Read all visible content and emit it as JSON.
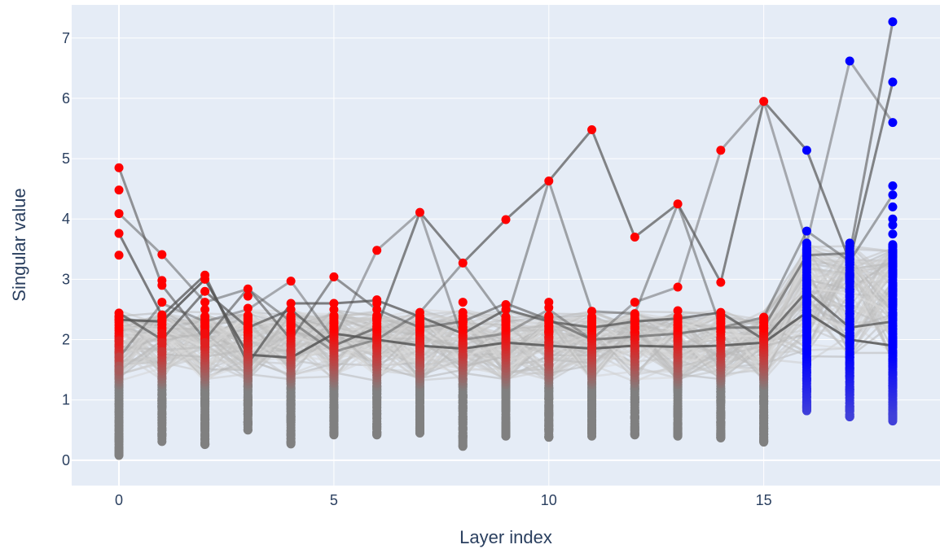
{
  "chart_data": {
    "type": "scatter",
    "title": "",
    "xlabel": "Layer index",
    "ylabel": "Singular value",
    "xlim": [
      -1.1,
      19.1
    ],
    "ylim": [
      -0.42,
      7.55
    ],
    "x_ticks": [
      0,
      5,
      10,
      15
    ],
    "y_ticks": [
      0,
      1,
      2,
      3,
      4,
      5,
      6,
      7
    ],
    "grid": true,
    "legend": "none",
    "colors": {
      "plot_bg": "#e5ecf6",
      "grid": "#ffffff",
      "text": "#2a3f5f",
      "point_low": "#808080",
      "point_high_early": "#ff0000",
      "point_high_late": "#0000ff",
      "line_dark": "#555555",
      "line_light": "#cccccc"
    },
    "point_layers": [
      {
        "x": 0,
        "min": 0.08,
        "max": 4.85,
        "n": 18,
        "color": "red",
        "values": [
          4.85,
          4.48,
          4.09,
          3.76,
          3.4,
          2.44,
          2.33,
          1.98,
          1.71,
          1.56,
          1.5,
          0.93,
          0.8,
          0.5,
          0.34,
          0.2,
          0.15,
          0.1
        ]
      },
      {
        "x": 1,
        "min": 0.31,
        "max": 3.41,
        "n": 40,
        "color": "red",
        "values": [
          3.41,
          2.98,
          2.9,
          2.62,
          2.41,
          2.31,
          2.1,
          1.95,
          1.8
        ]
      },
      {
        "x": 2,
        "min": 0.26,
        "max": 3.07,
        "n": 60,
        "color": "red",
        "values": [
          3.07,
          3.0,
          2.8,
          2.62,
          2.5,
          2.3,
          2.1,
          1.95
        ]
      },
      {
        "x": 3,
        "min": 0.5,
        "max": 2.84,
        "n": 60,
        "color": "red",
        "values": [
          2.84,
          2.72,
          2.52,
          2.4
        ]
      },
      {
        "x": 4,
        "min": 0.27,
        "max": 2.97,
        "n": 60,
        "color": "red",
        "values": [
          2.97,
          2.6,
          2.5,
          2.4
        ]
      },
      {
        "x": 5,
        "min": 0.42,
        "max": 3.04,
        "n": 60,
        "color": "red",
        "values": [
          3.04,
          2.6,
          2.5
        ]
      },
      {
        "x": 6,
        "min": 0.42,
        "max": 3.48,
        "n": 60,
        "color": "red",
        "values": [
          3.48,
          2.66,
          2.6,
          2.5
        ]
      },
      {
        "x": 7,
        "min": 0.45,
        "max": 4.11,
        "n": 60,
        "color": "red",
        "values": [
          4.11,
          2.45,
          2.38
        ]
      },
      {
        "x": 8,
        "min": 0.23,
        "max": 3.27,
        "n": 60,
        "color": "red",
        "values": [
          3.27,
          2.62,
          2.45
        ]
      },
      {
        "x": 9,
        "min": 0.4,
        "max": 3.99,
        "n": 60,
        "color": "red",
        "values": [
          3.99,
          2.58,
          2.5
        ]
      },
      {
        "x": 10,
        "min": 0.38,
        "max": 4.63,
        "n": 60,
        "color": "red",
        "values": [
          4.63,
          2.62,
          2.53
        ]
      },
      {
        "x": 11,
        "min": 0.4,
        "max": 5.48,
        "n": 60,
        "color": "red",
        "values": [
          5.48,
          2.47,
          2.2
        ]
      },
      {
        "x": 12,
        "min": 0.42,
        "max": 3.7,
        "n": 60,
        "color": "red",
        "values": [
          3.7,
          2.62,
          2.43
        ]
      },
      {
        "x": 13,
        "min": 0.4,
        "max": 4.25,
        "n": 60,
        "color": "red",
        "values": [
          4.25,
          2.87,
          2.48
        ]
      },
      {
        "x": 14,
        "min": 0.37,
        "max": 5.14,
        "n": 60,
        "color": "red",
        "values": [
          5.14,
          2.95,
          2.45
        ]
      },
      {
        "x": 15,
        "min": 0.3,
        "max": 5.95,
        "n": 60,
        "color": "red",
        "values": [
          5.95,
          2.37,
          2.2
        ]
      },
      {
        "x": 16,
        "min": 0.82,
        "max": 5.14,
        "n": 80,
        "color": "blue",
        "values": [
          5.14,
          3.8,
          3.6,
          3.5
        ]
      },
      {
        "x": 17,
        "min": 0.72,
        "max": 6.62,
        "n": 80,
        "color": "blue",
        "values": [
          6.62,
          3.43,
          3.35
        ]
      },
      {
        "x": 18,
        "min": 0.65,
        "max": 7.27,
        "n": 100,
        "color": "blue",
        "values": [
          7.27,
          6.27,
          5.6,
          4.55,
          4.4,
          4.2,
          4.0,
          3.9,
          3.75,
          3.55
        ]
      }
    ],
    "highlight_paths": [
      {
        "opacity": 0.85,
        "values": [
          2.33,
          2.3,
          3.0,
          1.75,
          1.7,
          2.1,
          2.0,
          1.9,
          1.85,
          1.95,
          1.9,
          1.85,
          1.9,
          1.88,
          1.9,
          1.95,
          2.45,
          2.0,
          1.9
        ]
      },
      {
        "opacity": 0.6,
        "values": [
          4.85,
          2.9,
          2.0,
          2.85,
          2.0,
          3.04,
          2.5,
          2.2,
          2.3,
          2.6,
          2.33,
          2.0,
          2.05,
          2.1,
          2.2,
          2.2,
          3.4,
          3.43,
          7.27
        ]
      },
      {
        "opacity": 0.75,
        "values": [
          3.76,
          2.4,
          3.07,
          1.6,
          2.6,
          2.6,
          2.65,
          2.38,
          2.1,
          2.5,
          2.3,
          2.2,
          2.3,
          2.35,
          2.45,
          2.0,
          2.8,
          2.2,
          2.3
        ]
      },
      {
        "opacity": 0.7,
        "values": [
          2.44,
          2.0,
          2.8,
          2.2,
          2.5,
          1.9,
          2.2,
          4.11,
          3.27,
          3.99,
          4.63,
          5.48,
          3.7,
          4.25,
          2.95,
          5.95,
          5.14,
          3.3,
          6.27
        ]
      },
      {
        "opacity": 0.45,
        "values": [
          1.7,
          2.6,
          2.3,
          2.5,
          2.97,
          2.0,
          3.48,
          4.11,
          2.0,
          2.1,
          2.5,
          2.0,
          2.62,
          2.87,
          5.14,
          5.95,
          3.6,
          6.62,
          5.6
        ]
      },
      {
        "opacity": 0.5,
        "values": [
          4.09,
          3.41,
          2.62,
          2.84,
          2.3,
          1.8,
          2.0,
          2.45,
          3.27,
          2.3,
          4.63,
          2.47,
          2.43,
          4.25,
          2.2,
          2.37,
          3.8,
          3.3,
          4.4
        ]
      }
    ]
  }
}
